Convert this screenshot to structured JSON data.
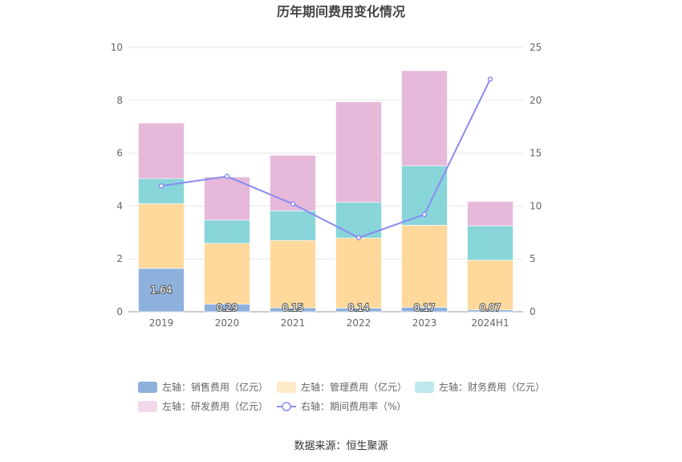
{
  "chart_data": {
    "type": "bar",
    "title": "历年期间费用变化情况",
    "source": "数据来源：恒生聚源",
    "categories": [
      "2019",
      "2020",
      "2021",
      "2022",
      "2023",
      "2024H1"
    ],
    "left_axis": {
      "min": 0,
      "max": 10,
      "ticks": [
        "0",
        "2",
        "4",
        "6",
        "8",
        "10"
      ]
    },
    "right_axis": {
      "min": 0,
      "max": 25,
      "ticks": [
        "0",
        "5",
        "10",
        "15",
        "20",
        "25"
      ]
    },
    "grid": true,
    "legend_position": "bottom",
    "series": [
      {
        "name": "左轴：销售费用（亿元）",
        "kind": "bar",
        "axis": "left",
        "color": "#8eb0dc",
        "values": [
          1.64,
          0.29,
          0.15,
          0.14,
          0.17,
          0.07
        ],
        "labels": [
          "1.64",
          "0.29",
          "0.15",
          "0.14",
          "0.17",
          "0.07"
        ]
      },
      {
        "name": "左轴：管理费用（亿元）",
        "kind": "bar",
        "axis": "left",
        "color": "#ffd99b",
        "values": [
          2.45,
          2.3,
          2.55,
          2.65,
          3.1,
          1.88
        ]
      },
      {
        "name": "左轴：财务费用（亿元）",
        "kind": "bar",
        "axis": "left",
        "color": "#88d5da",
        "values": [
          0.95,
          0.88,
          1.12,
          1.35,
          2.25,
          1.3
        ]
      },
      {
        "name": "左轴：研发费用（亿元）",
        "kind": "bar",
        "axis": "left",
        "color": "#e6b9da",
        "values": [
          2.1,
          1.63,
          2.1,
          3.8,
          3.6,
          0.92
        ]
      },
      {
        "name": "右轴：期间费用率（%）",
        "kind": "line",
        "axis": "right",
        "color": "#8a8cf0",
        "values": [
          11.9,
          12.8,
          10.2,
          7.0,
          9.2,
          22.0
        ]
      }
    ]
  }
}
